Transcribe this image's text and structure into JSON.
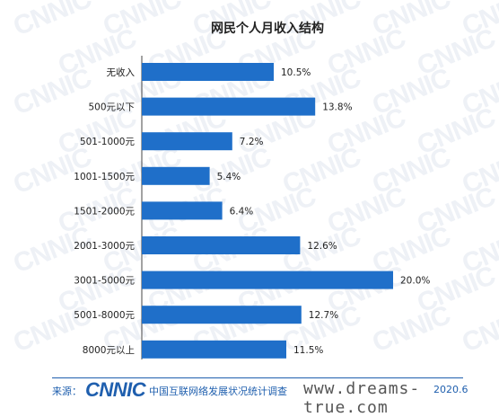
{
  "chart_data": {
    "type": "bar",
    "orientation": "horizontal",
    "title": "网民个人月收入结构",
    "categories": [
      "无收入",
      "500元以下",
      "501-1000元",
      "1001-1500元",
      "1501-2000元",
      "2001-3000元",
      "3001-5000元",
      "5001-8000元",
      "8000元以上"
    ],
    "values": [
      10.5,
      13.8,
      7.2,
      5.4,
      6.4,
      12.6,
      20.0,
      12.7,
      11.5
    ],
    "value_labels": [
      "10.5%",
      "13.8%",
      "7.2%",
      "5.4%",
      "6.4%",
      "12.6%",
      "20.0%",
      "12.7%",
      "11.5%"
    ],
    "unit": "%",
    "xlim": [
      0,
      20.0
    ],
    "grid": false,
    "legend": "none",
    "bar_color": "#1f6fc9"
  },
  "watermark": {
    "text": "CNNIC"
  },
  "footer": {
    "source_label": "来源：",
    "logo_text": "CNNIC",
    "source_text": "中国互联网络发展状况统计调查",
    "site_watermark": "www.dreams-true.com",
    "date": "2020.6"
  }
}
